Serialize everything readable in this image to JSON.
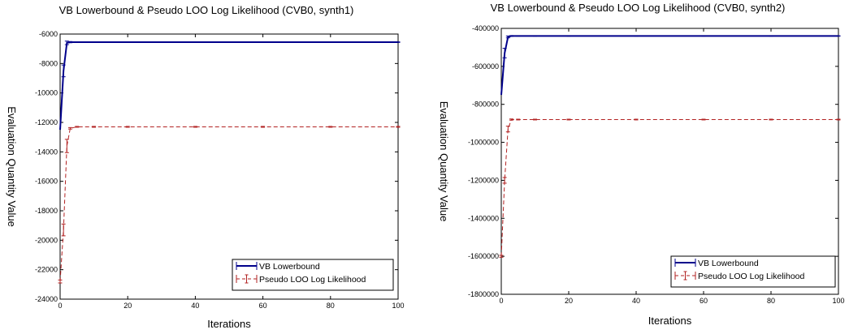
{
  "chart_data": [
    {
      "type": "line",
      "title": "VB Lowerbound & Pseudo LOO Log Likelihood (CVB0, synth1)",
      "xlabel": "Iterations",
      "ylabel": "Evaluation Quantity Value",
      "xlim": [
        0,
        100
      ],
      "ylim": [
        -24000,
        -6000
      ],
      "xticks": [
        0,
        20,
        40,
        60,
        80,
        100
      ],
      "yticks": [
        -24000,
        -22000,
        -20000,
        -18000,
        -16000,
        -14000,
        -12000,
        -10000,
        -8000,
        -6000
      ],
      "legend": "bottom-right",
      "grid": false,
      "series": [
        {
          "name": "VB Lowerbound",
          "color": "#00008b",
          "style": "solid",
          "x": [
            0,
            1,
            2,
            3,
            5,
            10,
            20,
            40,
            60,
            80,
            100
          ],
          "y": [
            -12500,
            -8500,
            -6600,
            -6550,
            -6550,
            -6550,
            -6550,
            -6550,
            -6550,
            -6550,
            -6550
          ],
          "err": [
            0,
            400,
            120,
            40,
            20,
            20,
            20,
            20,
            20,
            20,
            20
          ]
        },
        {
          "name": "Pseudo LOO Log Likelihood",
          "color": "#b22222",
          "style": "dashed",
          "x": [
            0,
            1,
            2,
            3,
            5,
            10,
            20,
            40,
            60,
            80,
            100
          ],
          "y": [
            -22800,
            -19300,
            -13600,
            -12400,
            -12300,
            -12300,
            -12300,
            -12300,
            -12300,
            -12300,
            -12300
          ],
          "err": [
            100,
            400,
            450,
            50,
            30,
            30,
            30,
            30,
            30,
            30,
            30
          ]
        }
      ]
    },
    {
      "type": "line",
      "title": "VB Lowerbound & Pseudo LOO Log Likelihood (CVB0, synth2)",
      "xlabel": "Iterations",
      "ylabel": "Evaluation Quantity Value",
      "xlim": [
        0,
        100
      ],
      "ylim": [
        -1800000,
        -400000
      ],
      "xticks": [
        0,
        20,
        40,
        60,
        80,
        100
      ],
      "yticks": [
        -1800000,
        -1600000,
        -1400000,
        -1200000,
        -1000000,
        -800000,
        -600000,
        -400000
      ],
      "legend": "bottom-right",
      "grid": false,
      "series": [
        {
          "name": "VB Lowerbound",
          "color": "#00008b",
          "style": "solid",
          "x": [
            0,
            1,
            2,
            3,
            5,
            10,
            20,
            40,
            60,
            80,
            100
          ],
          "y": [
            -750000,
            -530000,
            -445000,
            -440000,
            -440000,
            -440000,
            -440000,
            -440000,
            -440000,
            -440000,
            -440000
          ],
          "err": [
            0,
            25000,
            5000,
            2000,
            1000,
            1000,
            1000,
            1000,
            1000,
            1000,
            1000
          ]
        },
        {
          "name": "Pseudo LOO Log Likelihood",
          "color": "#b22222",
          "style": "dashed",
          "x": [
            0,
            1,
            2,
            3,
            5,
            10,
            20,
            40,
            60,
            80,
            100
          ],
          "y": [
            -1600000,
            -1200000,
            -930000,
            -880000,
            -880000,
            -880000,
            -880000,
            -880000,
            -880000,
            -880000,
            -880000
          ],
          "err": [
            5000,
            15000,
            15000,
            3000,
            2000,
            2000,
            2000,
            2000,
            2000,
            2000,
            2000
          ]
        }
      ]
    }
  ]
}
